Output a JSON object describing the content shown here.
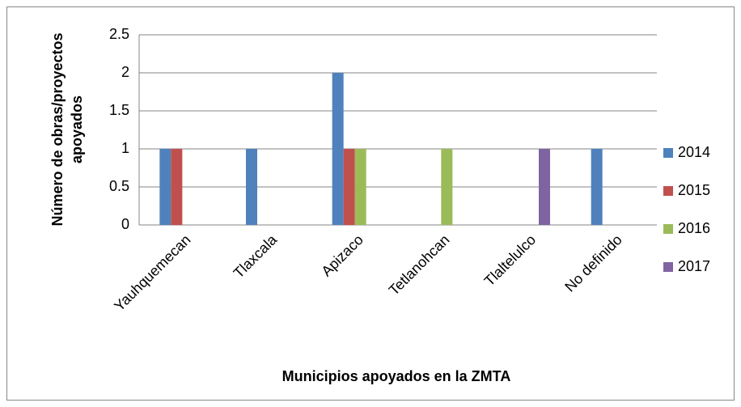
{
  "chart_data": {
    "type": "bar",
    "x_label": "Municipios apoyados en la ZMTA",
    "y_label": [
      "Número de obras/proyectos",
      "apoyados"
    ],
    "categories": [
      "Yauhquemecan",
      "Tlaxcala",
      "Apizaco",
      "Tetlanohcan",
      "Tlaltelulco",
      "No definido"
    ],
    "series": [
      {
        "name": "2014",
        "color": "#4f81bd",
        "values": [
          1,
          1,
          2,
          0,
          0,
          1
        ]
      },
      {
        "name": "2015",
        "color": "#c0504d",
        "values": [
          1,
          0,
          1,
          0,
          0,
          0
        ]
      },
      {
        "name": "2016",
        "color": "#9bbb59",
        "values": [
          0,
          0,
          1,
          1,
          0,
          0
        ]
      },
      {
        "name": "2017",
        "color": "#8064a2",
        "values": [
          0,
          0,
          0,
          0,
          1,
          0
        ]
      }
    ],
    "ylim": [
      0,
      2.5
    ],
    "yticks": [
      0,
      0.5,
      1,
      1.5,
      2,
      2.5
    ],
    "grid": true,
    "legend": "right"
  }
}
